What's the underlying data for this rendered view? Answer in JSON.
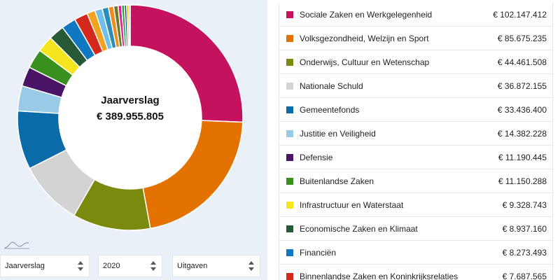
{
  "donut": {
    "title": "Jaarverslag",
    "total": "€ 389.955.805",
    "extra_segments": [
      {
        "value": 4.7,
        "color": "#f4a11e"
      },
      {
        "value": 4.2,
        "color": "#72bfe9"
      },
      {
        "value": 3.6,
        "color": "#2a8eb8"
      },
      {
        "value": 3.0,
        "color": "#ef8a1e"
      },
      {
        "value": 2.5,
        "color": "#6b7a2b"
      },
      {
        "value": 2.0,
        "color": "#e0218a"
      },
      {
        "value": 1.6,
        "color": "#2e9e3b"
      },
      {
        "value": 1.3,
        "color": "#0b4f8a"
      },
      {
        "value": 1.1,
        "color": "#d6b000"
      },
      {
        "value": 0.9,
        "color": "#a0a0a0"
      }
    ]
  },
  "filters": {
    "type": "Jaarverslag",
    "year": "2020",
    "direction": "Uitgaven"
  },
  "items": [
    {
      "name": "Sociale Zaken en Werkgelegenheid",
      "amount": "€ 102.147.412",
      "value": 102.147412,
      "color": "#c4125f"
    },
    {
      "name": "Volksgezondheid, Welzijn en Sport",
      "amount": "€ 85.675.235",
      "value": 85.675235,
      "color": "#e37200"
    },
    {
      "name": "Onderwijs, Cultuur en Wetenschap",
      "amount": "€ 44.461.508",
      "value": 44.461508,
      "color": "#7b8a0f"
    },
    {
      "name": "Nationale Schuld",
      "amount": "€ 36.872.155",
      "value": 36.872155,
      "color": "#d3d3d3"
    },
    {
      "name": "Gemeentefonds",
      "amount": "€ 33.436.400",
      "value": 33.4364,
      "color": "#0b6aa8"
    },
    {
      "name": "Justitie en Veiligheid",
      "amount": "€ 14.382.228",
      "value": 14.382228,
      "color": "#99cbe6"
    },
    {
      "name": "Defensie",
      "amount": "€ 11.190.445",
      "value": 11.190445,
      "color": "#4a1567"
    },
    {
      "name": "Buitenlandse Zaken",
      "amount": "€ 11.150.288",
      "value": 11.150288,
      "color": "#39901e"
    },
    {
      "name": "Infrastructuur en Waterstaat",
      "amount": "€ 9.328.743",
      "value": 9.328743,
      "color": "#f5e51f"
    },
    {
      "name": "Economische Zaken en Klimaat",
      "amount": "€ 8.937.160",
      "value": 8.93716,
      "color": "#275937"
    },
    {
      "name": "Financiën",
      "amount": "€ 8.273.493",
      "value": 8.273493,
      "color": "#0f78c1"
    },
    {
      "name": "Binnenlandse Zaken en Koninkrijksrelaties",
      "amount": "€ 7.687.565",
      "value": 7.687565,
      "color": "#d3291c"
    }
  ],
  "icons": {
    "chart_wave": "wave-chart-icon",
    "select_arrows": "up-down-arrows-icon"
  }
}
